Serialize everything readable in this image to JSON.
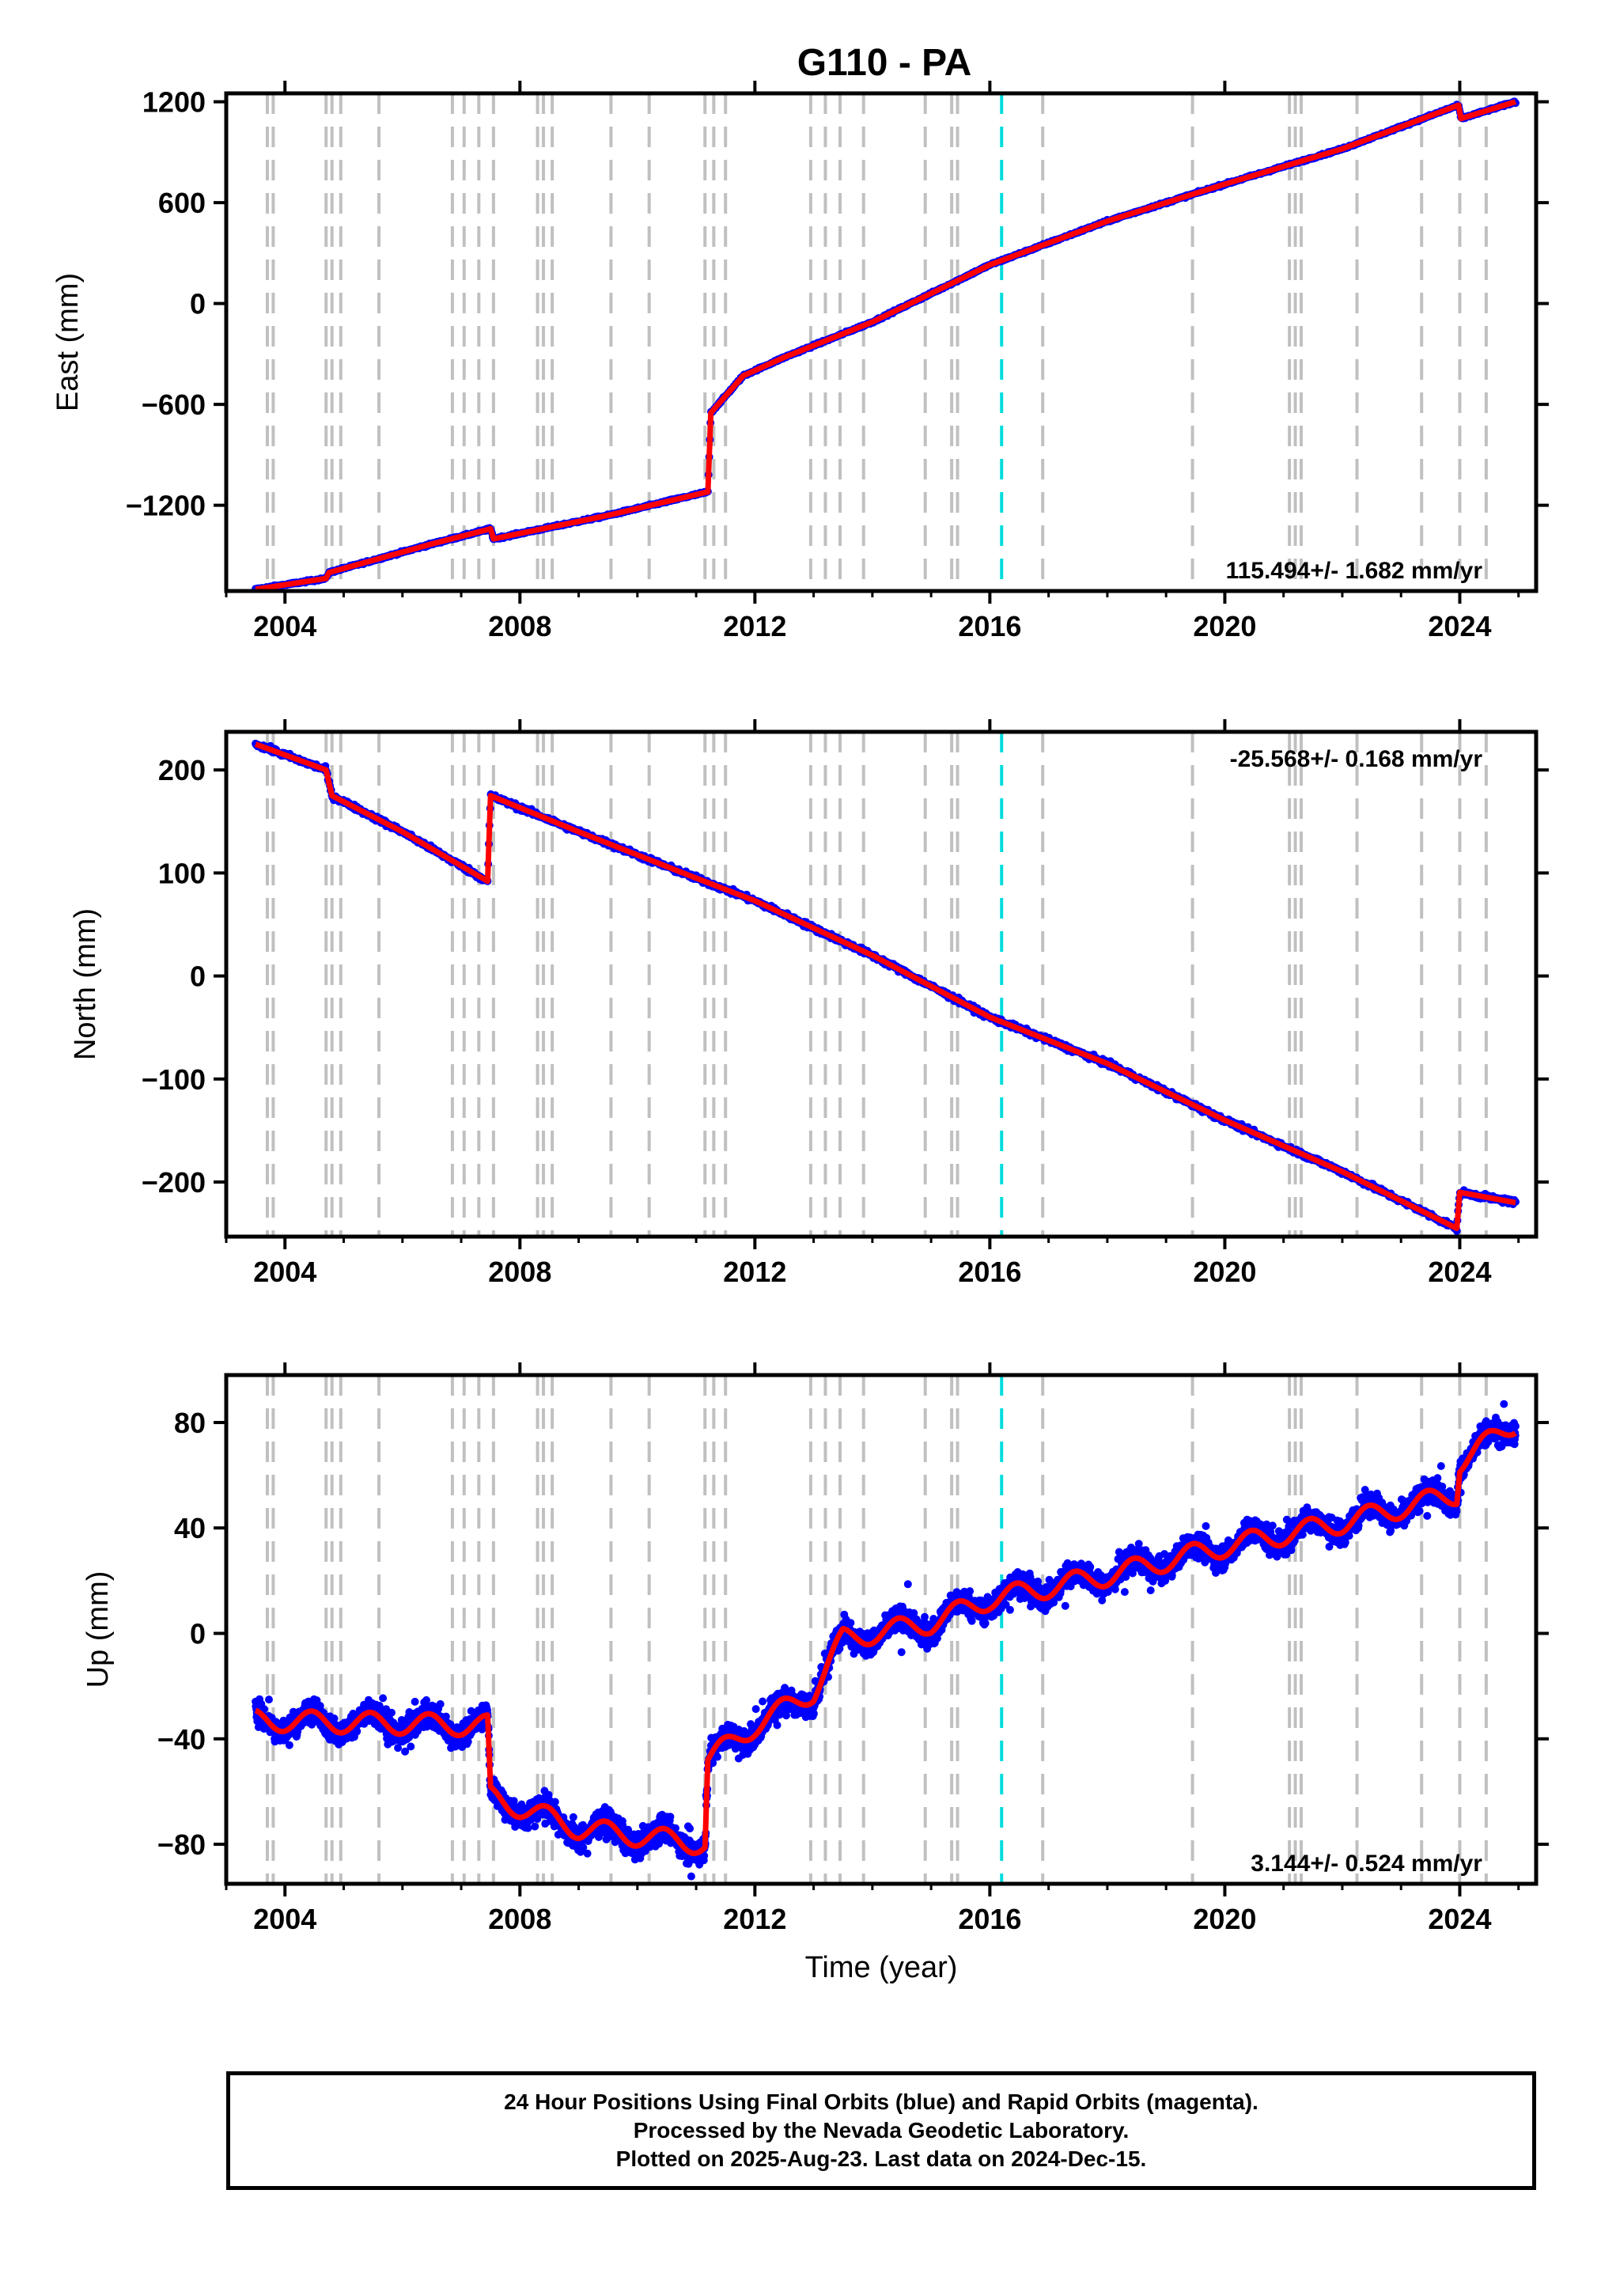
{
  "title": "G110 - PA",
  "colors": {
    "final_orbits": "#0000ff",
    "model": "#ff0000",
    "event_lines": "#c0c0c0",
    "highlight_line": "#00dcdc"
  },
  "footer": {
    "line1": "24 Hour Positions Using Final Orbits (blue) and Rapid Orbits (magenta).",
    "line2": "Processed by the Nevada Geodetic Laboratory.",
    "line3": "Plotted on 2025-Aug-23. Last data on 2024-Dec-15."
  },
  "chart_data": [
    {
      "type": "scatter",
      "component": "East",
      "ylabel": "East (mm)",
      "xlabel": "",
      "xlim": [
        2003.0,
        2025.3
      ],
      "ylim": [
        -1710,
        1250
      ],
      "xticks": [
        2004,
        2008,
        2012,
        2016,
        2020,
        2024
      ],
      "yticks": [
        -1200,
        -600,
        0,
        600,
        1200
      ],
      "velocity_label": "115.494+/- 1.682 mm/yr",
      "label_position": "bottom-right",
      "trend_points": [
        [
          2003.5,
          -1700
        ],
        [
          2004.7,
          -1635
        ],
        [
          2004.75,
          -1600
        ],
        [
          2006.5,
          -1430
        ],
        [
          2007.5,
          -1340
        ],
        [
          2007.55,
          -1400
        ],
        [
          2009.5,
          -1260
        ],
        [
          2011.2,
          -1120
        ],
        [
          2011.25,
          -650
        ],
        [
          2011.8,
          -430
        ],
        [
          2012.5,
          -320
        ],
        [
          2014.0,
          -110
        ],
        [
          2016.0,
          230
        ],
        [
          2018.0,
          490
        ],
        [
          2020.0,
          710
        ],
        [
          2022.0,
          920
        ],
        [
          2023.98,
          1180
        ],
        [
          2024.02,
          1100
        ],
        [
          2024.95,
          1200
        ]
      ]
    },
    {
      "type": "scatter",
      "component": "North",
      "ylabel": "North (mm)",
      "xlabel": "",
      "xlim": [
        2003.0,
        2025.3
      ],
      "ylim": [
        -253,
        237
      ],
      "xticks": [
        2004,
        2008,
        2012,
        2016,
        2020,
        2024
      ],
      "yticks": [
        -200,
        -100,
        0,
        100,
        200
      ],
      "velocity_label": "-25.568+/- 0.168 mm/yr",
      "label_position": "top-right",
      "trend_points": [
        [
          2003.5,
          225
        ],
        [
          2004.7,
          200
        ],
        [
          2004.8,
          175
        ],
        [
          2006.0,
          140
        ],
        [
          2007.45,
          92
        ],
        [
          2007.5,
          175
        ],
        [
          2009.0,
          140
        ],
        [
          2011.0,
          95
        ],
        [
          2012.0,
          73
        ],
        [
          2014.0,
          20
        ],
        [
          2016.0,
          -40
        ],
        [
          2018.0,
          -85
        ],
        [
          2020.0,
          -140
        ],
        [
          2022.0,
          -190
        ],
        [
          2023.95,
          -245
        ],
        [
          2024.0,
          -210
        ],
        [
          2024.95,
          -220
        ]
      ]
    },
    {
      "type": "scatter",
      "component": "Up",
      "ylabel": "Up (mm)",
      "xlabel": "Time (year)",
      "xlim": [
        2003.0,
        2025.3
      ],
      "ylim": [
        -95,
        98
      ],
      "xticks": [
        2004,
        2008,
        2012,
        2016,
        2020,
        2024
      ],
      "yticks": [
        -80,
        -40,
        0,
        40,
        80
      ],
      "velocity_label": "3.144+/- 0.524 mm/yr",
      "label_position": "bottom-right",
      "trend_points": [
        [
          2003.5,
          -33
        ],
        [
          2007.45,
          -35
        ],
        [
          2007.5,
          -62
        ],
        [
          2009.0,
          -74
        ],
        [
          2011.15,
          -80
        ],
        [
          2011.2,
          -48
        ],
        [
          2012.0,
          -35
        ],
        [
          2013.0,
          -22
        ],
        [
          2013.5,
          -2
        ],
        [
          2015.0,
          4
        ],
        [
          2016.0,
          13
        ],
        [
          2018.0,
          22
        ],
        [
          2020.0,
          33
        ],
        [
          2022.0,
          42
        ],
        [
          2023.95,
          53
        ],
        [
          2024.0,
          65
        ],
        [
          2024.95,
          80
        ]
      ]
    }
  ],
  "event_lines": [
    2003.7,
    2003.8,
    2004.7,
    2004.8,
    2004.95,
    2005.6,
    2006.85,
    2007.05,
    2007.3,
    2007.55,
    2008.3,
    2008.4,
    2008.55,
    2009.55,
    2010.2,
    2011.15,
    2011.3,
    2011.5,
    2012.95,
    2013.2,
    2013.45,
    2013.85,
    2014.9,
    2015.35,
    2015.45,
    2016.9,
    2019.45,
    2021.1,
    2021.2,
    2021.3,
    2022.25,
    2023.35,
    2024.0,
    2024.45
  ],
  "highlight_line": 2016.2
}
